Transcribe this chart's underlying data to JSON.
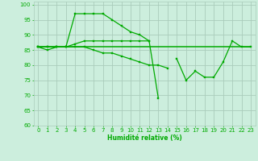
{
  "x": [
    0,
    1,
    2,
    3,
    4,
    5,
    6,
    7,
    8,
    9,
    10,
    11,
    12,
    13,
    14,
    15,
    16,
    17,
    18,
    19,
    20,
    21,
    22,
    23
  ],
  "line1": [
    86,
    85,
    86,
    86,
    97,
    97,
    97,
    97,
    95,
    93,
    91,
    90,
    88,
    69,
    null,
    82,
    75,
    78,
    76,
    76,
    81,
    88,
    86,
    86
  ],
  "line2": [
    86,
    86,
    86,
    86,
    86,
    86,
    86,
    86,
    86,
    86,
    86,
    86,
    86,
    86,
    86,
    86,
    86,
    86,
    86,
    86,
    86,
    86,
    86,
    86
  ],
  "line3": [
    86,
    86,
    86,
    86,
    86,
    86,
    85,
    84,
    84,
    83,
    82,
    81,
    80,
    80,
    79,
    null,
    null,
    null,
    null,
    null,
    null,
    null,
    null,
    null
  ],
  "line4": [
    86,
    86,
    86,
    86,
    87,
    88,
    88,
    88,
    88,
    88,
    88,
    88,
    88,
    null,
    null,
    null,
    null,
    null,
    null,
    null,
    null,
    null,
    null,
    null
  ],
  "line_color": "#00aa00",
  "bg_color": "#cceedd",
  "grid_color": "#aaccbb",
  "xlabel": "Humidité relative (%)",
  "xlim": [
    -0.5,
    23.5
  ],
  "ylim": [
    60,
    101
  ],
  "yticks": [
    60,
    65,
    70,
    75,
    80,
    85,
    90,
    95,
    100
  ],
  "xticks": [
    0,
    1,
    2,
    3,
    4,
    5,
    6,
    7,
    8,
    9,
    10,
    11,
    12,
    13,
    14,
    15,
    16,
    17,
    18,
    19,
    20,
    21,
    22,
    23
  ],
  "xlabel_fontsize": 5.5,
  "tick_fontsize": 5.0,
  "line_width": 0.9,
  "marker_size": 2.0
}
